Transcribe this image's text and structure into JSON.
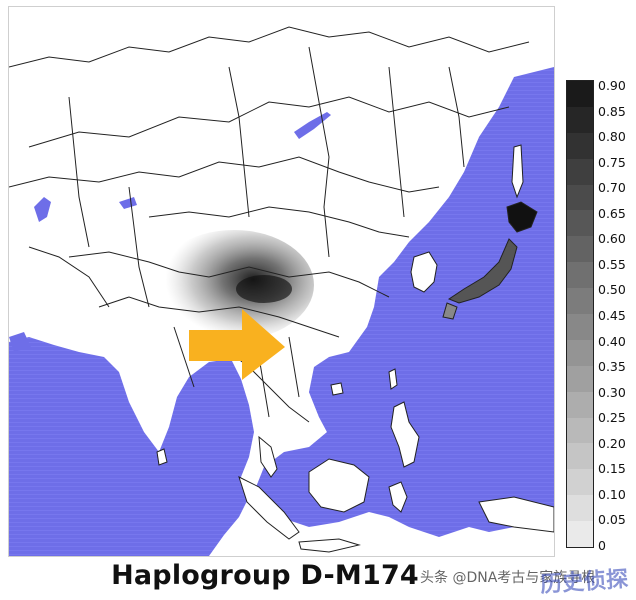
{
  "title": "Haplogroup D-M174",
  "legend": {
    "ticks": [
      "0.90",
      "0.85",
      "0.80",
      "0.75",
      "0.70",
      "0.65",
      "0.60",
      "0.55",
      "0.50",
      "0.45",
      "0.40",
      "0.35",
      "0.30",
      "0.25",
      "0.20",
      "0.15",
      "0.10",
      "0.05",
      "0"
    ],
    "color_high": "#1a1a1a",
    "color_low": "#f6f6f6"
  },
  "colors": {
    "sea": "#6e6ee8",
    "land": "#ffffff",
    "border": "#222222",
    "arrow": "#f9b11f"
  },
  "watermark": {
    "text": "头条 @DNA考古与家族寻根",
    "stamp": "历史侦探"
  },
  "icons": {
    "arrow": "arrow-right-icon"
  }
}
